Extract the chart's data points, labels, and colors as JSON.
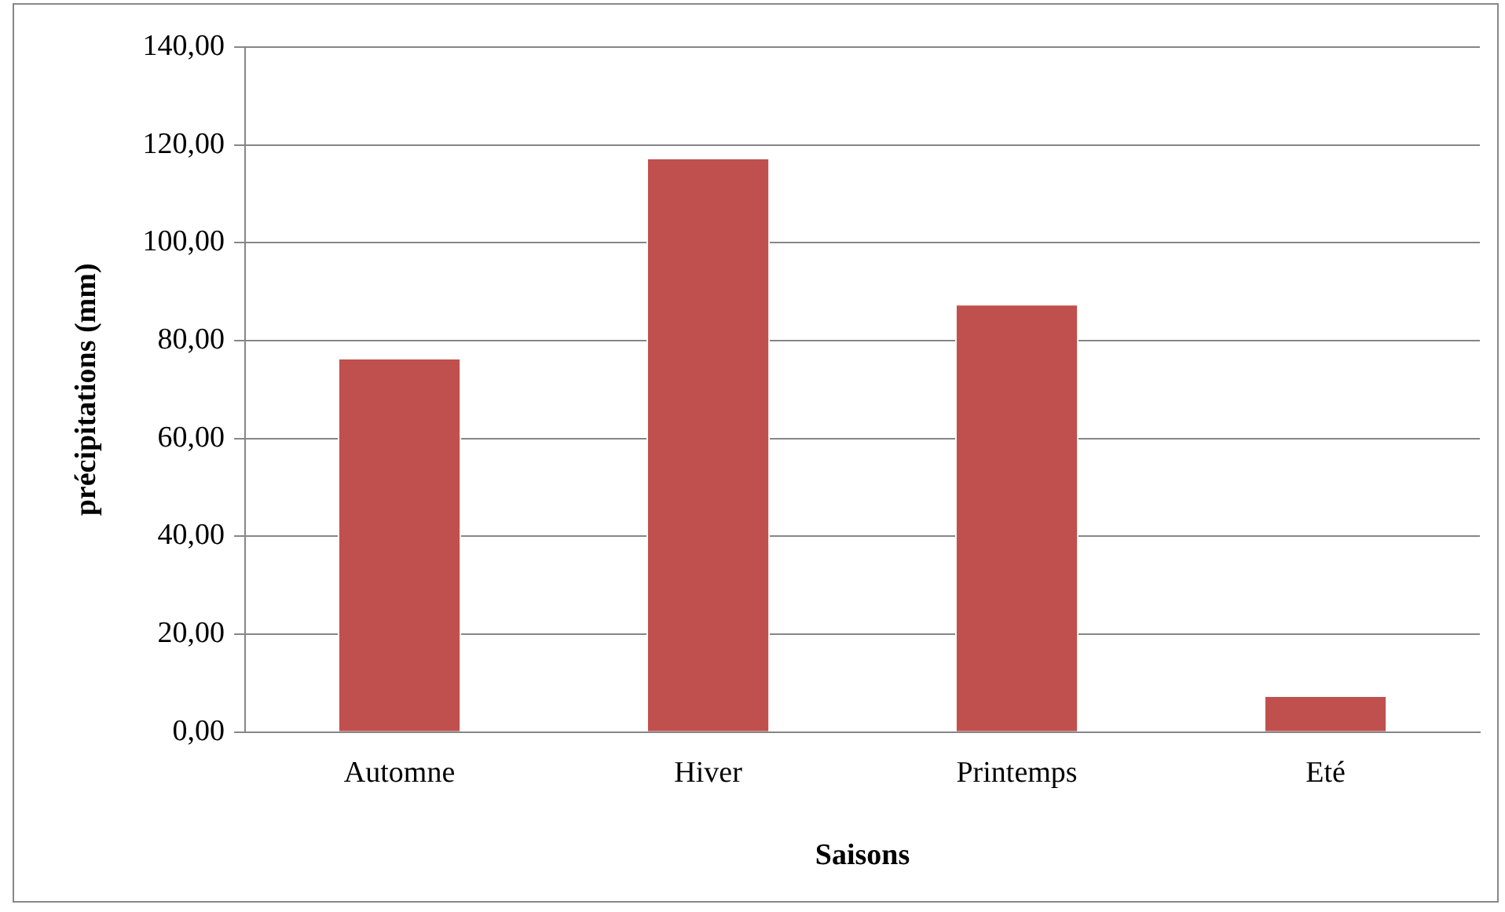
{
  "chart_data": {
    "type": "bar",
    "xlabel": "Saisons",
    "ylabel": "précipitations (mm)",
    "categories": [
      "Automne",
      "Hiver",
      "Printemps",
      "Eté"
    ],
    "values": [
      76.5,
      117.4,
      87.5,
      7.5
    ],
    "color": "#c0504d",
    "ylim": [
      0,
      140
    ],
    "yticks": [
      {
        "value": 0,
        "label": "0,00"
      },
      {
        "value": 20,
        "label": "20,00"
      },
      {
        "value": 40,
        "label": "40,00"
      },
      {
        "value": 60,
        "label": "60,00"
      },
      {
        "value": 80,
        "label": "80,00"
      },
      {
        "value": 100,
        "label": "100,00"
      },
      {
        "value": 120,
        "label": "120,00"
      },
      {
        "value": 140,
        "label": "140,00"
      }
    ],
    "grid": "y",
    "legend": false
  }
}
